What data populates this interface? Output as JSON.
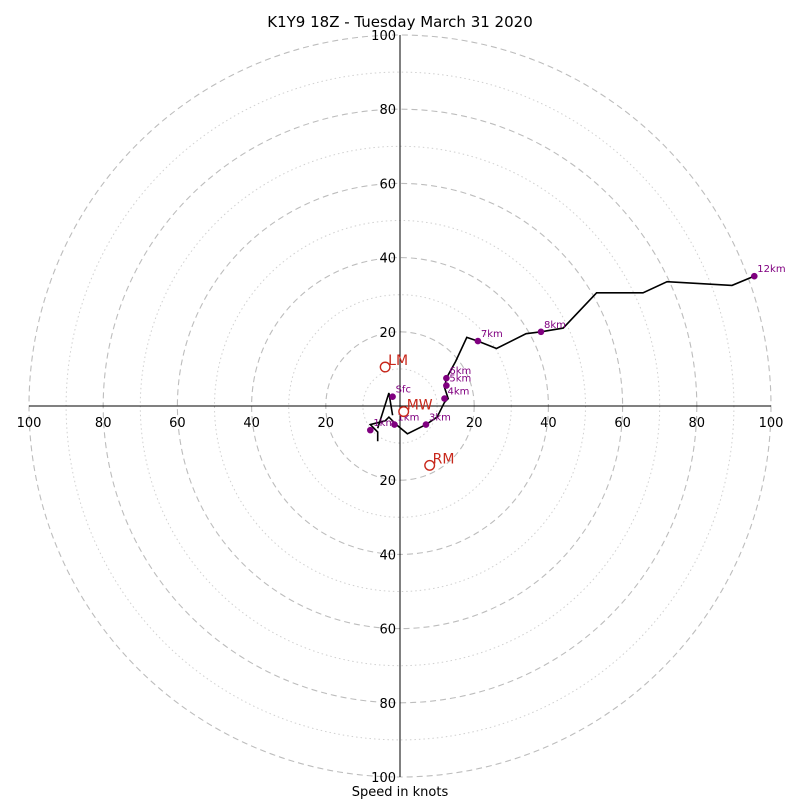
{
  "chart_data": {
    "type": "hodograph",
    "title": "K1Y9 18Z - Tuesday March 31 2020",
    "xlabel": "Speed in knots",
    "range": [
      -100,
      100
    ],
    "rings_major": [
      20,
      40,
      60,
      80,
      100
    ],
    "rings_minor": [
      10,
      30,
      50,
      70,
      90
    ],
    "x_ticks": [
      {
        "v": -100,
        "label": "100"
      },
      {
        "v": -80,
        "label": "80"
      },
      {
        "v": -60,
        "label": "60"
      },
      {
        "v": -40,
        "label": "40"
      },
      {
        "v": -20,
        "label": "20"
      },
      {
        "v": 20,
        "label": "20"
      },
      {
        "v": 40,
        "label": "40"
      },
      {
        "v": 60,
        "label": "60"
      },
      {
        "v": 80,
        "label": "80"
      },
      {
        "v": 100,
        "label": "100"
      }
    ],
    "y_ticks": [
      {
        "v": 100,
        "label": "100"
      },
      {
        "v": 80,
        "label": "80"
      },
      {
        "v": 60,
        "label": "60"
      },
      {
        "v": 40,
        "label": "40"
      },
      {
        "v": 20,
        "label": "20"
      },
      {
        "v": -20,
        "label": "20"
      },
      {
        "v": -40,
        "label": "40"
      },
      {
        "v": -60,
        "label": "60"
      },
      {
        "v": -80,
        "label": "80"
      },
      {
        "v": -100,
        "label": "100"
      }
    ],
    "trace": [
      [
        -6,
        -9.5
      ],
      [
        -6,
        -7
      ],
      [
        -8,
        -5
      ],
      [
        -4,
        -4
      ],
      [
        -3,
        -3
      ],
      [
        -1,
        -5
      ],
      [
        2,
        -7.5
      ],
      [
        7,
        -5
      ],
      [
        10,
        -3
      ],
      [
        11,
        -1
      ],
      [
        12,
        1
      ],
      [
        13,
        2
      ],
      [
        12,
        5
      ],
      [
        12.5,
        7.5
      ],
      [
        15,
        12
      ],
      [
        18,
        18.5
      ],
      [
        21,
        17.5
      ],
      [
        26,
        15.5
      ],
      [
        34,
        19.5
      ],
      [
        38,
        20
      ],
      [
        44,
        21
      ],
      [
        53,
        30.5
      ],
      [
        65.5,
        30.5
      ],
      [
        72,
        33.5
      ],
      [
        89.5,
        32.5
      ],
      [
        95.5,
        35
      ]
    ],
    "trace_extra": [
      [
        -2,
        -2.5
      ],
      [
        -3,
        3.5
      ],
      [
        -6,
        -6
      ]
    ],
    "points": [
      {
        "label": "Sfc",
        "u": -2,
        "v": 2.5
      },
      {
        "label": "1km",
        "u": -8,
        "v": -6.5
      },
      {
        "label": "1km",
        "u": -1.5,
        "v": -5
      },
      {
        "label": "3km",
        "u": 7,
        "v": -5
      },
      {
        "label": "4km",
        "u": 12,
        "v": 2
      },
      {
        "label": "5km",
        "u": 12.5,
        "v": 5.5
      },
      {
        "label": "6km",
        "u": 12.5,
        "v": 7.5
      },
      {
        "label": "7km",
        "u": 21,
        "v": 17.5
      },
      {
        "label": "8km",
        "u": 38,
        "v": 20
      },
      {
        "label": "12km",
        "u": 95.5,
        "v": 35
      }
    ],
    "motion_vectors": [
      {
        "label": "LM",
        "u": -4,
        "v": 10.5
      },
      {
        "label": "MW",
        "u": 1,
        "v": -1.5
      },
      {
        "label": "RM",
        "u": 8,
        "v": -16
      }
    ]
  }
}
